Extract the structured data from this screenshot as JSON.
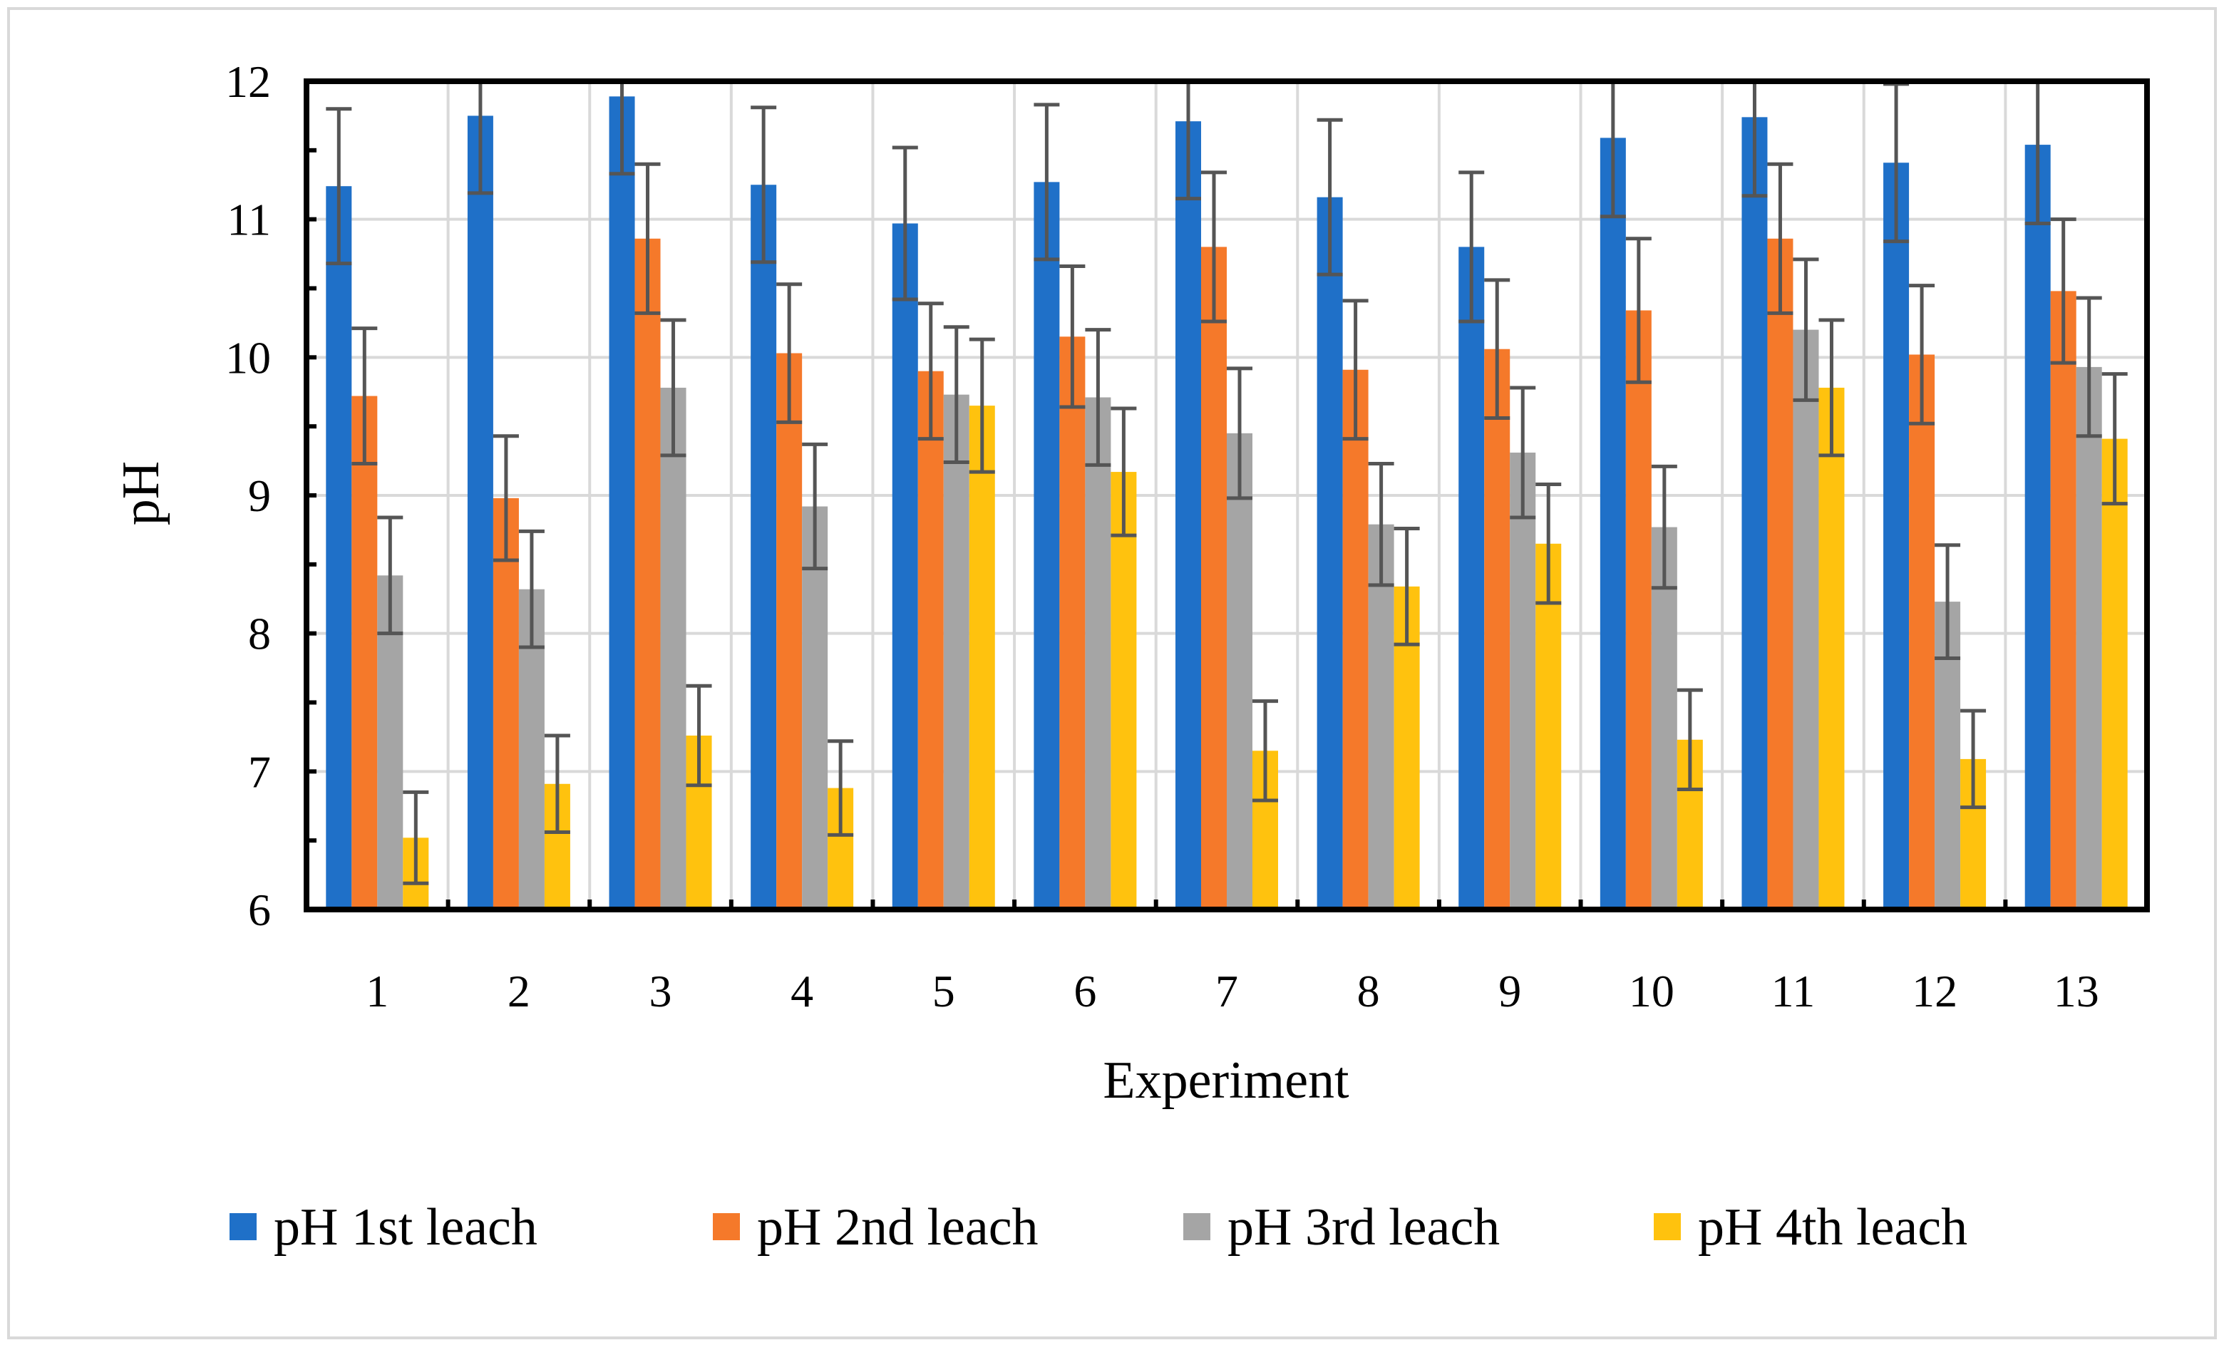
{
  "chart_data": {
    "type": "bar",
    "title": "",
    "xlabel": "Experiment",
    "ylabel": "pH",
    "ylim": [
      6,
      12
    ],
    "yticks": [
      6,
      7,
      8,
      9,
      10,
      11,
      12
    ],
    "categories": [
      "1",
      "2",
      "3",
      "4",
      "5",
      "6",
      "7",
      "8",
      "9",
      "10",
      "11",
      "12",
      "13"
    ],
    "grid": true,
    "legend_position": "bottom",
    "series": [
      {
        "name": "pH 1st leach",
        "color": "#1F70C8",
        "values": [
          11.24,
          11.75,
          11.89,
          11.25,
          10.97,
          11.27,
          11.71,
          11.16,
          10.8,
          11.59,
          11.74,
          11.41,
          11.54
        ],
        "errors": [
          0.56,
          0.56,
          0.56,
          0.56,
          0.55,
          0.56,
          0.56,
          0.56,
          0.54,
          0.57,
          0.57,
          0.57,
          0.57
        ]
      },
      {
        "name": "pH 2nd leach",
        "color": "#F5792A",
        "values": [
          9.72,
          8.98,
          10.86,
          10.03,
          9.9,
          10.15,
          10.8,
          9.91,
          10.06,
          10.34,
          10.86,
          10.02,
          10.48
        ],
        "errors": [
          0.49,
          0.45,
          0.54,
          0.5,
          0.49,
          0.51,
          0.54,
          0.5,
          0.5,
          0.52,
          0.54,
          0.5,
          0.52
        ]
      },
      {
        "name": "pH 3rd leach",
        "color": "#A5A5A5",
        "values": [
          8.42,
          8.32,
          9.78,
          8.92,
          9.73,
          9.71,
          9.45,
          8.79,
          9.31,
          8.77,
          10.2,
          8.23,
          9.93
        ],
        "errors": [
          0.42,
          0.42,
          0.49,
          0.45,
          0.49,
          0.49,
          0.47,
          0.44,
          0.47,
          0.44,
          0.51,
          0.41,
          0.5
        ]
      },
      {
        "name": "pH 4th leach",
        "color": "#FFC20E",
        "values": [
          6.52,
          6.91,
          7.26,
          6.88,
          9.65,
          9.17,
          7.15,
          8.34,
          8.65,
          7.23,
          9.78,
          7.09,
          9.41
        ],
        "errors": [
          0.33,
          0.35,
          0.36,
          0.34,
          0.48,
          0.46,
          0.36,
          0.42,
          0.43,
          0.36,
          0.49,
          0.35,
          0.47
        ]
      }
    ]
  }
}
